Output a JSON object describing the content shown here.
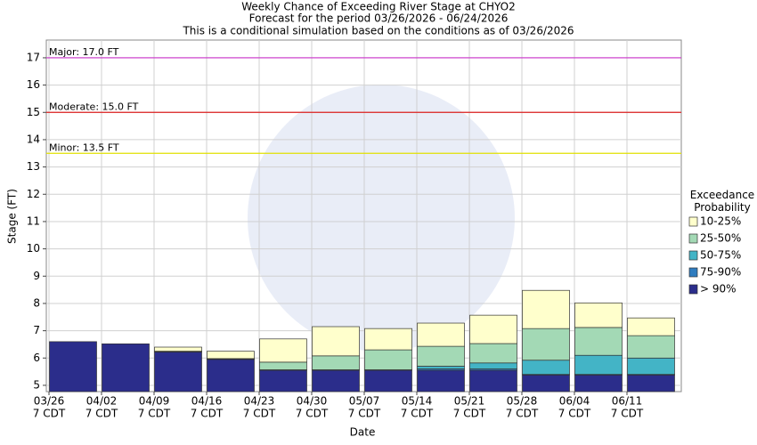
{
  "chart_data": {
    "type": "range-bar",
    "title": "Weekly Chance of Exceeding River Stage at CHYO2",
    "subtitle": "Forecast for the period 03/26/2026 - 06/24/2026",
    "subtitle2": "This is a conditional simulation based on the conditions as of 03/26/2026",
    "y_label": "Stage (FT)",
    "x_label": "Date",
    "legend_title": "Exceedance Probability",
    "categories": [
      "03/26",
      "04/02",
      "04/09",
      "04/16",
      "04/23",
      "04/30",
      "05/07",
      "05/14",
      "05/21",
      "05/28",
      "06/04",
      "06/11"
    ],
    "category_sublabel": "7 CDT",
    "series": [
      {
        "name": "> 90%",
        "color": "#2b2d8b",
        "values": [
          6.6,
          6.52,
          6.22,
          5.95,
          5.55,
          5.55,
          5.55,
          5.55,
          5.55,
          5.38,
          5.38,
          5.38
        ]
      },
      {
        "name": "75-90%",
        "color": "#2f7cbf",
        "values": [
          6.6,
          6.52,
          6.23,
          5.96,
          5.55,
          5.55,
          5.55,
          5.6,
          5.6,
          5.4,
          5.4,
          5.4
        ]
      },
      {
        "name": "50-75%",
        "color": "#43b4c6",
        "values": [
          6.6,
          6.52,
          6.24,
          5.97,
          5.57,
          5.57,
          5.57,
          5.7,
          5.82,
          5.92,
          6.1,
          6.0
        ]
      },
      {
        "name": "25-50%",
        "color": "#a3d9b5",
        "values": [
          6.6,
          6.52,
          6.25,
          5.98,
          5.85,
          6.08,
          6.3,
          6.43,
          6.53,
          7.08,
          7.12,
          6.82
        ]
      },
      {
        "name": "10-25%",
        "color": "#ffffcc",
        "values": [
          6.6,
          6.52,
          6.4,
          6.25,
          6.7,
          7.15,
          7.08,
          7.28,
          7.57,
          8.48,
          8.02,
          7.47
        ]
      }
    ],
    "thresholds": [
      {
        "label": "Major: 17.0 FT",
        "value": 17.0,
        "color": "#cc33cc"
      },
      {
        "label": "Moderate: 15.0 FT",
        "value": 15.0,
        "color": "#dd2222"
      },
      {
        "label": "Minor: 13.5 FT",
        "value": 13.5,
        "color": "#e0e000"
      }
    ],
    "ylim": [
      4.77,
      17.65
    ],
    "yticks": [
      5,
      6,
      7,
      8,
      9,
      10,
      11,
      12,
      13,
      14,
      15,
      16,
      17
    ],
    "grid": true
  }
}
